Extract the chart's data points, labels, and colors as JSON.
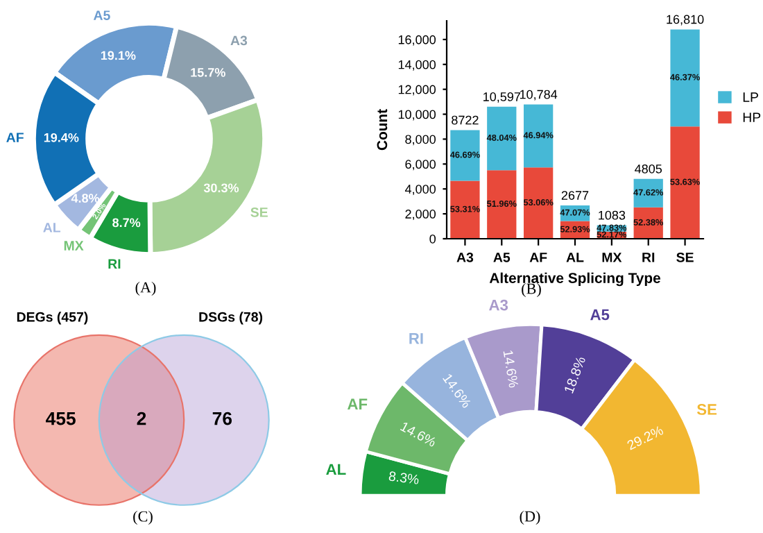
{
  "chart_data": [
    {
      "type": "donut",
      "annotations": [
        "(A)"
      ],
      "categories": [
        "A5",
        "A3",
        "SE",
        "RI",
        "MX",
        "AL",
        "AF"
      ],
      "values": [
        19.1,
        15.7,
        30.3,
        8.7,
        2.0,
        4.8,
        19.4
      ],
      "value_labels": [
        "19.1%",
        "15.7%",
        "30.3%",
        "8.7%",
        "2.0%",
        "4.8%",
        "19.4%"
      ],
      "colors": [
        "#6a9bcf",
        "#8da0ae",
        "#a6d196",
        "#1a9c3e",
        "#74c476",
        "#a3b8e0",
        "#1170b5"
      ]
    },
    {
      "type": "bar",
      "stacked": true,
      "xlabel": "Alternative Splicing Type",
      "ylabel": "Count",
      "annotations": [
        "(B)",
        "53.31%",
        "51.96%",
        "53.06%",
        "52.93%",
        "52.17%",
        "52.38%",
        "53.63%",
        "46.69%",
        "48.04%",
        "46.94%",
        "47.07%",
        "47.83%",
        "47.62%",
        "46.37%"
      ],
      "categories": [
        "A3",
        "A5",
        "AF",
        "AL",
        "MX",
        "RI",
        "SE"
      ],
      "series": [
        {
          "name": "HP",
          "color": "#e8493a",
          "values": [
            4650,
            5506,
            5722,
            1417,
            565,
            2517,
            9015
          ]
        },
        {
          "name": "LP",
          "color": "#46b8d6",
          "values": [
            4072,
            5091,
            5062,
            1260,
            518,
            2288,
            7795
          ]
        }
      ],
      "totals": [
        "8722",
        "10,597",
        "10,784",
        "2677",
        "1083",
        "4805",
        "16,810"
      ],
      "ylim": [
        0,
        17500
      ],
      "yticks": [
        0,
        {
          "value": 2000,
          "label": "2,000"
        },
        {
          "value": 4000,
          "label": "4,000"
        },
        {
          "value": 6000,
          "label": "6,000"
        },
        {
          "value": 8000,
          "label": "8,000"
        },
        {
          "value": 10000,
          "label": "10,000"
        },
        {
          "value": 12000,
          "label": "12,000"
        },
        {
          "value": 14000,
          "label": "14,000"
        },
        {
          "value": 16000,
          "label": "16,000"
        }
      ],
      "legend": "right",
      "grid": false
    },
    {
      "type": "other",
      "annotations": [
        "(C)",
        "DEGs (457)",
        "DSGs (78)"
      ],
      "categories": [
        null,
        null,
        null
      ],
      "colors": [
        "#f4b8b0",
        "#d9a9bd",
        "#ddd3ec"
      ],
      "values": [
        455,
        2,
        76
      ],
      "data_labels": true
    },
    {
      "type": "donut",
      "annotations": [
        "(D)"
      ],
      "categories": [
        "AL",
        "AF",
        "RI",
        "A3",
        "A5",
        "SE"
      ],
      "values": [
        8.3,
        14.6,
        14.6,
        14.6,
        18.8,
        29.2
      ],
      "value_labels": [
        "8.3%",
        "14.6%",
        "14.6%",
        "14.6%",
        "18.8%",
        "29.2%"
      ],
      "colors": [
        "#1a9c3e",
        "#6db86a",
        "#97b4dd",
        "#a99acb",
        "#523f98",
        "#f2b731"
      ]
    }
  ]
}
